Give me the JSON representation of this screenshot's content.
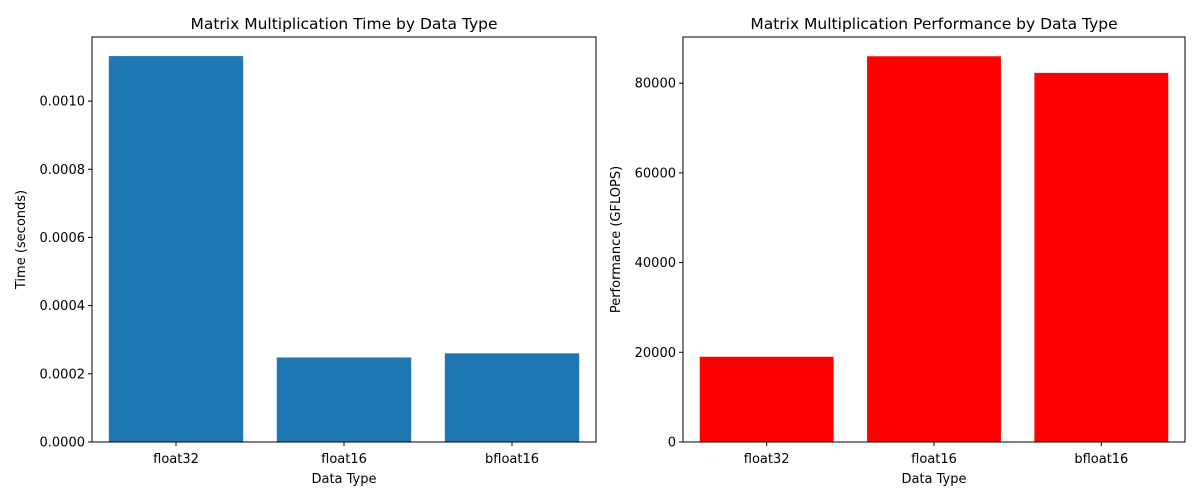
{
  "chart_data": [
    {
      "type": "bar",
      "title": "Matrix Multiplication Time by Data Type",
      "xlabel": "Data Type",
      "ylabel": "Time (seconds)",
      "categories": [
        "float32",
        "float16",
        "bfloat16"
      ],
      "values": [
        0.001132,
        0.000248,
        0.00026
      ],
      "ylim": [
        0,
        0.001188
      ],
      "yticks": [
        0,
        0.0002,
        0.0004,
        0.0006,
        0.0008,
        0.001
      ],
      "ytick_labels": [
        "0.0000",
        "0.0002",
        "0.0004",
        "0.0006",
        "0.0008",
        "0.0010"
      ],
      "color": "#1f77b4",
      "grid": false
    },
    {
      "type": "bar",
      "title": "Matrix Multiplication Performance by Data Type",
      "xlabel": "Data Type",
      "ylabel": "Performance (GFLOPS)",
      "categories": [
        "float32",
        "float16",
        "bfloat16"
      ],
      "values": [
        19000,
        86000,
        82300
      ],
      "ylim": [
        0,
        90300
      ],
      "yticks": [
        0,
        20000,
        40000,
        60000,
        80000
      ],
      "ytick_labels": [
        "0",
        "20000",
        "40000",
        "60000",
        "80000"
      ],
      "color": "#ff0000",
      "grid": false
    }
  ]
}
